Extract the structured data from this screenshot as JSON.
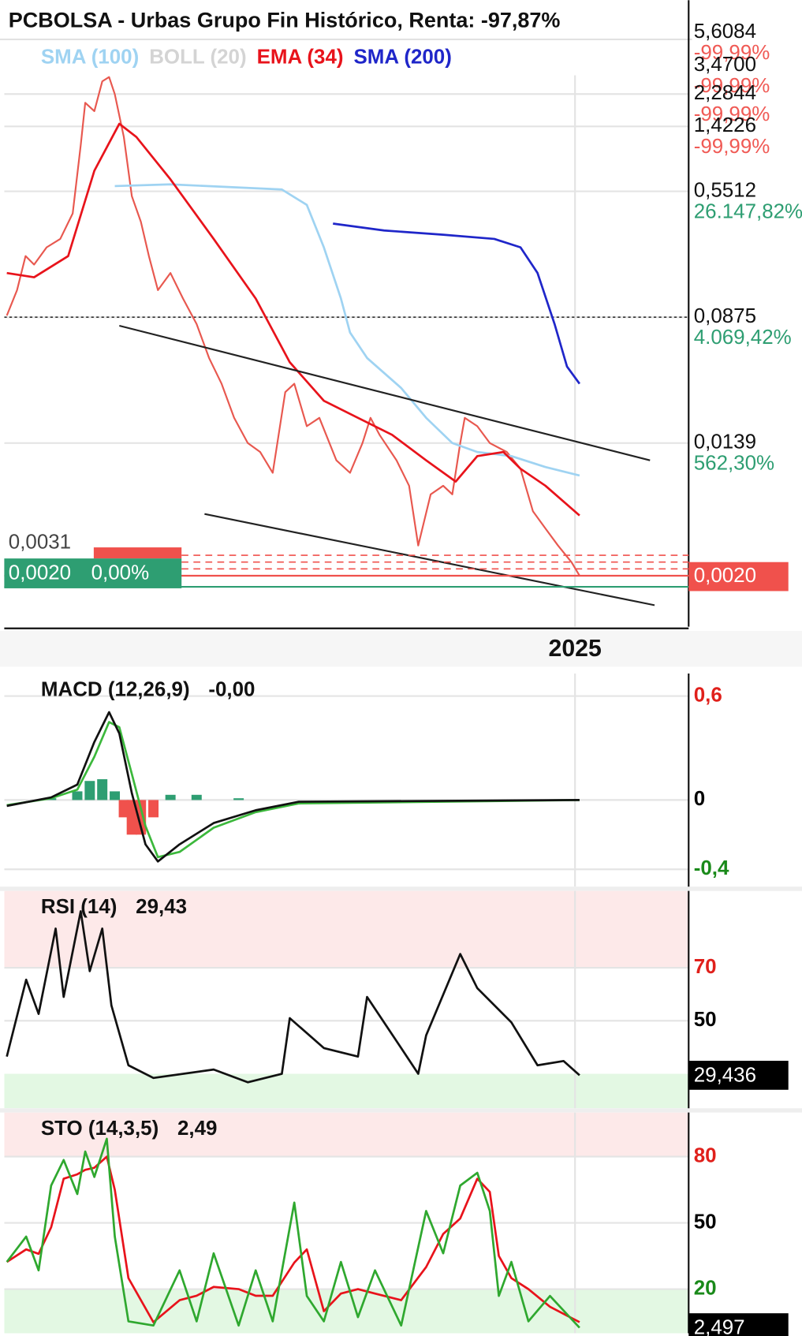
{
  "chart_data": [
    {
      "type": "line",
      "title": "PCBOLSA - Urbas Grupo Fin Histórico, Renta: -97,87%",
      "log_scale": true,
      "xlim": [
        2020,
        2026
      ],
      "xticks": [
        2025
      ],
      "ylim": [
        0.00095,
        6.2
      ],
      "yticks": [
        {
          "value": 5.6084,
          "label": "5,6084"
        },
        {
          "value": 3.47,
          "label": "3,4700"
        },
        {
          "value": 2.2844,
          "label": "2,2844"
        },
        {
          "value": 1.4226,
          "label": "1,4226"
        },
        {
          "value": 0.5512,
          "label": "0,5512"
        },
        {
          "value": 0.0875,
          "label": "0,0875"
        },
        {
          "value": 0.0139,
          "label": "0,0139"
        }
      ],
      "ytick_pct_labels": [
        "-99,99%",
        "-99,99%",
        "-99,99%",
        "-99,99%",
        "26.147,82%",
        "4.069,42%",
        "562,30%"
      ],
      "reference_line": 0.0875,
      "last_price": {
        "value": 0.002,
        "label": "0,0020"
      },
      "left_badge": {
        "high": "0,0031",
        "last": "0,0020",
        "change": "0,00%"
      },
      "series": [
        {
          "color": "#e8584f",
          "x": [
            2020,
            2020.09,
            2020.165,
            2020.24,
            2020.35,
            2020.47,
            2020.58,
            2020.65,
            2020.69,
            2020.77,
            2020.84,
            2020.9,
            2020.95,
            2021.03,
            2021.1,
            2021.18,
            2021.25,
            2021.33,
            2021.44,
            2021.55,
            2021.67,
            2021.78,
            2021.89,
            2022.0,
            2022.12,
            2022.23,
            2022.34,
            2022.45,
            2022.53,
            2022.64,
            2022.75,
            2022.9,
            2023.02,
            2023.13,
            2023.2,
            2023.28,
            2023.43,
            2023.54,
            2023.62,
            2023.73,
            2023.84,
            2023.92,
            2023.99,
            2024.03,
            2024.14,
            2024.25,
            2024.4,
            2024.52,
            2024.63,
            2024.74,
            2024.85,
            2024.97,
            2025.04
          ],
          "values": [
            0.0897,
            0.13,
            0.214,
            0.189,
            0.243,
            0.275,
            0.399,
            1.08,
            2.01,
            1.78,
            2.75,
            2.93,
            2.28,
            1.22,
            0.513,
            0.353,
            0.214,
            0.13,
            0.167,
            0.115,
            0.0792,
            0.0482,
            0.0331,
            0.0201,
            0.0139,
            0.0122,
            0.009,
            0.0293,
            0.0331,
            0.0178,
            0.0201,
            0.0108,
            0.009,
            0.0139,
            0.0201,
            0.0157,
            0.0108,
            0.00745,
            0.00311,
            0.00657,
            0.00745,
            0.00657,
            0.0139,
            0.0201,
            0.0178,
            0.0139,
            0.0122,
            0.00956,
            0.00513,
            0.00399,
            0.00311,
            0.00243,
            0.002
          ]
        },
        {
          "name": "SMA (100)",
          "color": "#9fd3f2",
          "x": [
            2020.95,
            2021.44,
            2022.42,
            2022.64,
            2022.79,
            2022.94,
            2023.02,
            2023.17,
            2023.47,
            2023.69,
            2023.92,
            2024.14,
            2024.44,
            2024.74,
            2025.04
          ],
          "values": [
            0.595,
            0.61,
            0.566,
            0.452,
            0.243,
            0.115,
            0.07,
            0.0482,
            0.0311,
            0.0201,
            0.0139,
            0.0122,
            0.0115,
            0.0098,
            0.00865
          ]
        },
        {
          "name": "BOLL (20)",
          "color": "#d4d4d4",
          "x": [],
          "values": []
        },
        {
          "name": "EMA (34)",
          "color": "#e8131b",
          "x": [
            2020,
            2020.24,
            2020.54,
            2020.77,
            2020.99,
            2021.14,
            2021.44,
            2021.82,
            2022.19,
            2022.49,
            2022.79,
            2023.09,
            2023.39,
            2023.69,
            2023.95,
            2024.14,
            2024.37,
            2024.52,
            2024.74,
            2025.04
          ],
          "values": [
            0.167,
            0.157,
            0.214,
            0.745,
            1.48,
            1.22,
            0.657,
            0.275,
            0.115,
            0.0453,
            0.0258,
            0.0201,
            0.0157,
            0.0108,
            0.00792,
            0.0115,
            0.0122,
            0.00956,
            0.00745,
            0.00482
          ]
        },
        {
          "name": "SMA (200)",
          "color": "#1f26c9",
          "x": [
            2022.87,
            2023.32,
            2023.84,
            2024.29,
            2024.52,
            2024.67,
            2024.82,
            2024.93,
            2025.04
          ],
          "values": [
            0.344,
            0.311,
            0.292,
            0.275,
            0.243,
            0.167,
            0.0792,
            0.0425,
            0.0331
          ]
        }
      ],
      "trendlines": [
        {
          "x": [
            2020.99,
            2025.66
          ],
          "y": [
            0.0773,
            0.0108
          ]
        },
        {
          "x": [
            2021.74,
            2025.7
          ],
          "y": [
            0.00493,
            0.0013
          ]
        }
      ]
    },
    {
      "type": "line",
      "title": "MACD (12,26,9)",
      "header_value": "-0,00",
      "xlim": [
        2020,
        2026
      ],
      "xticks": [
        2025
      ],
      "ylim": [
        -0.5,
        0.73
      ],
      "yticks": [
        {
          "value": 0.6,
          "label": "0,6"
        },
        0,
        {
          "value": -0.4,
          "label": "-0,4"
        }
      ],
      "ytick_colors": [
        "#e0201b",
        "#000000",
        "#1a8a1a"
      ],
      "series": [
        {
          "kind": "bar",
          "color": "#2e9e72",
          "negative_color": "#f0514c",
          "x": [
            2020.39,
            2020.62,
            2020.73,
            2020.84,
            2020.95,
            2021.03,
            2021.1,
            2021.18,
            2021.29,
            2021.44,
            2021.67,
            2022.04
          ],
          "values": [
            0.01,
            0.05,
            0.11,
            0.12,
            0.05,
            -0.1,
            -0.2,
            -0.2,
            -0.1,
            0.03,
            0.03,
            0.01
          ]
        },
        {
          "color": "#3cb83c",
          "x": [
            2020,
            2020.39,
            2020.62,
            2020.77,
            2020.9,
            2020.99,
            2021.1,
            2021.22,
            2021.33,
            2021.52,
            2021.82,
            2022.19,
            2022.57,
            2025.04
          ],
          "values": [
            -0.03,
            0.01,
            0.06,
            0.25,
            0.45,
            0.42,
            0.15,
            -0.15,
            -0.33,
            -0.3,
            -0.16,
            -0.07,
            -0.02,
            0
          ]
        },
        {
          "color": "#111111",
          "x": [
            2020,
            2020.39,
            2020.62,
            2020.77,
            2020.9,
            2020.99,
            2021.1,
            2021.22,
            2021.33,
            2021.52,
            2021.82,
            2022.19,
            2022.57,
            2025.04
          ],
          "values": [
            -0.034,
            0.015,
            0.089,
            0.335,
            0.507,
            0.384,
            0.039,
            -0.256,
            -0.355,
            -0.256,
            -0.133,
            -0.059,
            -0.01,
            0
          ]
        }
      ]
    },
    {
      "type": "line",
      "title": "RSI (14)",
      "header_value": "29,43",
      "xlim": [
        2020,
        2026
      ],
      "xticks": [
        2025
      ],
      "ylim": [
        17,
        99
      ],
      "yticks": [
        70,
        50
      ],
      "ytick_colors": [
        "#e0201b",
        "#000000"
      ],
      "upper_band": 70,
      "lower_band": 30,
      "last_value": {
        "value": 29.436,
        "label": "29,436"
      },
      "series": [
        {
          "color": "#111111",
          "x": [
            2020,
            2020.17,
            2020.28,
            2020.43,
            2020.5,
            2020.65,
            2020.73,
            2020.84,
            2020.92,
            2021.07,
            2021.29,
            2021.82,
            2022.12,
            2022.42,
            2022.49,
            2022.79,
            2023.09,
            2023.17,
            2023.47,
            2023.62,
            2023.69,
            2023.99,
            2024.14,
            2024.44,
            2024.67,
            2024.9,
            2025.04
          ],
          "values": [
            36.5,
            65.5,
            52.6,
            84.8,
            59.0,
            91.3,
            68.7,
            84.8,
            55.8,
            33.2,
            28.4,
            31.6,
            26.8,
            30.0,
            51.0,
            39.7,
            36.5,
            59.0,
            39.7,
            30.0,
            44.5,
            75.2,
            62.3,
            49.4,
            33.2,
            34.8,
            29.436
          ]
        }
      ]
    },
    {
      "type": "line",
      "title": "STO (14,3,5)",
      "header_value": "2,49",
      "xlim": [
        2020,
        2026
      ],
      "xticks": [
        2025
      ],
      "ylim": [
        0,
        100
      ],
      "yticks": [
        80,
        50,
        20
      ],
      "ytick_colors": [
        "#e0201b",
        "#000000",
        "#1a8a1a"
      ],
      "upper_band": 80,
      "lower_band": 20,
      "last_value": {
        "value": 2.497,
        "label": "2,497"
      },
      "series": [
        {
          "color": "#e8131b",
          "x": [
            2020,
            2020.17,
            2020.28,
            2020.39,
            2020.5,
            2020.62,
            2020.69,
            2020.77,
            2020.88,
            2020.95,
            2021.07,
            2021.29,
            2021.52,
            2021.67,
            2021.82,
            2022.04,
            2022.19,
            2022.34,
            2022.53,
            2022.64,
            2022.79,
            2022.94,
            2023.09,
            2023.24,
            2023.47,
            2023.69,
            2023.84,
            2023.99,
            2024.14,
            2024.25,
            2024.33,
            2024.44,
            2024.59,
            2024.78,
            2025.04
          ],
          "values": [
            32.3,
            38,
            36,
            48,
            70,
            72,
            74,
            75,
            80,
            65,
            25,
            5,
            15,
            17,
            21,
            20,
            17,
            17,
            32,
            38,
            10,
            18,
            20,
            18,
            15,
            30,
            45,
            52,
            70,
            64,
            35,
            25,
            20,
            12,
            5
          ]
        },
        {
          "color": "#2fa82f",
          "x": [
            2020,
            2020.17,
            2020.28,
            2020.39,
            2020.5,
            2020.62,
            2020.69,
            2020.77,
            2020.88,
            2020.95,
            2021.07,
            2021.29,
            2021.52,
            2021.67,
            2021.82,
            2022.04,
            2022.19,
            2022.34,
            2022.53,
            2022.64,
            2022.79,
            2022.94,
            2023.09,
            2023.24,
            2023.47,
            2023.69,
            2023.84,
            2023.99,
            2024.14,
            2024.25,
            2024.33,
            2024.44,
            2024.59,
            2024.78,
            2025.04
          ],
          "values": [
            32.3,
            43.8,
            28.5,
            66.9,
            78.5,
            63.1,
            82.3,
            70.8,
            88.1,
            43.8,
            5.4,
            3.5,
            28.5,
            5.4,
            36.2,
            3.5,
            28.5,
            5.4,
            59.2,
            16.9,
            5.4,
            32.3,
            7.3,
            28.5,
            3.5,
            55.4,
            36.2,
            66.9,
            72.7,
            55.4,
            16.9,
            32.3,
            5.4,
            16.9,
            2.497
          ]
        }
      ]
    }
  ]
}
